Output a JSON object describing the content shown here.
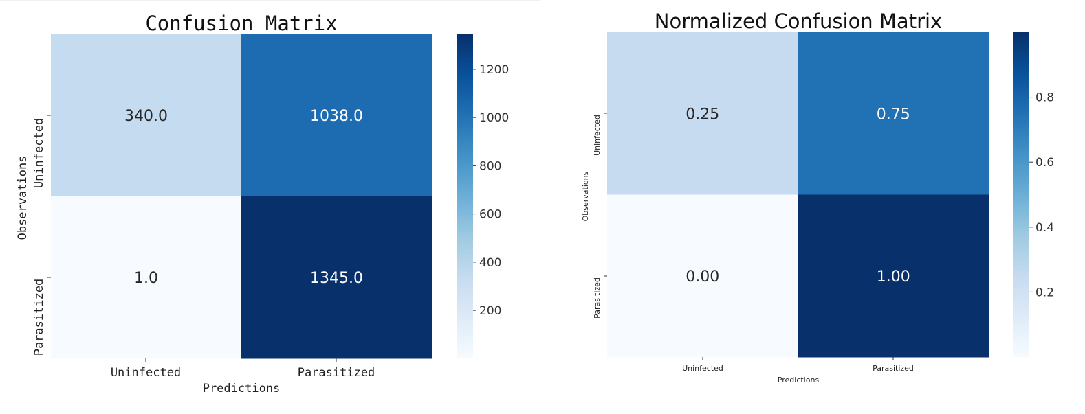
{
  "chart_data": [
    {
      "type": "heatmap",
      "title": "Confusion Matrix",
      "xlabel": "Predictions",
      "ylabel": "Observations",
      "x_categories": [
        "Uninfected",
        "Parasitized"
      ],
      "y_categories": [
        "Uninfected",
        "Parasitized"
      ],
      "values": [
        [
          340.0,
          1038.0
        ],
        [
          1.0,
          1345.0
        ]
      ],
      "cell_labels": [
        [
          "340.0",
          "1038.0"
        ],
        [
          "1.0",
          "1345.0"
        ]
      ],
      "colormap": "Blues",
      "vmin": 1.0,
      "vmax": 1345.0,
      "colorbar_ticks": [
        200,
        400,
        600,
        800,
        1000,
        1200
      ],
      "colorbar_tick_labels": [
        "200",
        "400",
        "600",
        "800",
        "1000",
        "1200"
      ]
    },
    {
      "type": "heatmap",
      "title": "Normalized Confusion Matrix",
      "xlabel": "Predictions",
      "ylabel": "Observations",
      "x_categories": [
        "Uninfected",
        "Parasitized"
      ],
      "y_categories": [
        "Uninfected",
        "Parasitized"
      ],
      "values": [
        [
          0.25,
          0.75
        ],
        [
          0.0,
          1.0
        ]
      ],
      "cell_labels": [
        [
          "0.25",
          "0.75"
        ],
        [
          "0.00",
          "1.00"
        ]
      ],
      "colormap": "Blues",
      "vmin": 0.0,
      "vmax": 1.0,
      "colorbar_ticks": [
        0.2,
        0.4,
        0.6,
        0.8
      ],
      "colorbar_tick_labels": [
        "0.2",
        "0.4",
        "0.6",
        "0.8"
      ]
    }
  ]
}
